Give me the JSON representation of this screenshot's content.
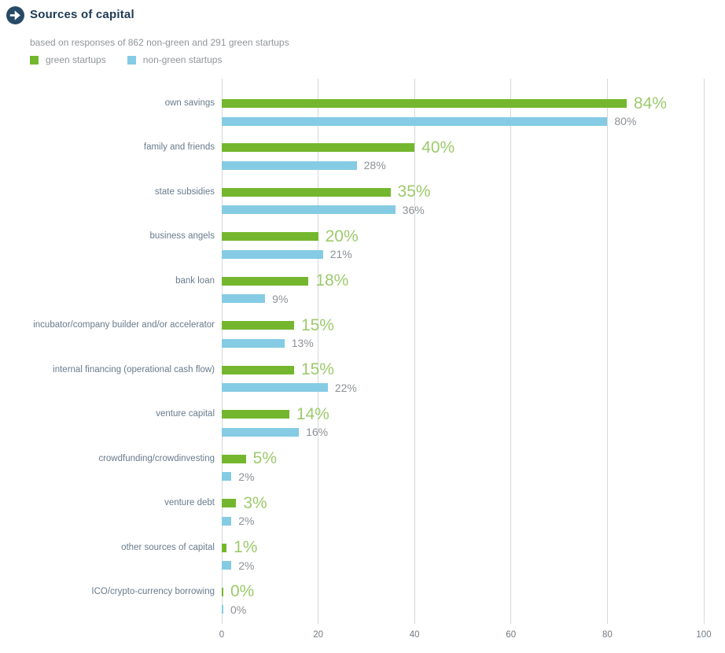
{
  "header": {
    "title": "Sources of capital",
    "subtitle": "based on responses of 862 non-green and 291 green startups"
  },
  "legend": [
    {
      "label": "green startups",
      "color": "#74b72e"
    },
    {
      "label": "non-green startups",
      "color": "#85cbe4"
    }
  ],
  "chart_data": {
    "type": "bar",
    "orientation": "horizontal",
    "title": "Sources of capital",
    "subtitle": "based on responses of 862 non-green and 291 green startups",
    "categories": [
      "own savings",
      "family and friends",
      "state subsidies",
      "business angels",
      "bank loan",
      "incubator/company builder and/or accelerator",
      "internal financing (operational cash flow)",
      "venture capital",
      "crowdfunding/crowdinvesting",
      "venture debt",
      "other sources of capital",
      "ICO/crypto-currency borrowing"
    ],
    "series": [
      {
        "name": "green startups",
        "color": "#74b72e",
        "values": [
          84,
          40,
          35,
          20,
          18,
          15,
          15,
          14,
          5,
          3,
          1,
          0
        ]
      },
      {
        "name": "non-green startups",
        "color": "#85cbe4",
        "values": [
          80,
          28,
          36,
          21,
          9,
          13,
          22,
          16,
          2,
          2,
          2,
          0
        ]
      }
    ],
    "value_suffix": "%",
    "xlim": [
      0,
      100
    ],
    "xticks": [
      0,
      20,
      40,
      60,
      80,
      100
    ],
    "grid": true,
    "legend_position": "top-left"
  },
  "colors": {
    "title": "#1e3a54",
    "icon_bg": "#284a68",
    "icon_arrow": "#ffffff",
    "subtitle": "#909699",
    "legend_text": "#909699",
    "category_label": "#697b8c",
    "green_bar": "#74b72e",
    "blue_bar": "#85cbe4",
    "green_value_label": "#9dca6d",
    "blue_value_label": "#8c9196",
    "tick_label": "#737a80",
    "gridline": "#d6d8da"
  }
}
